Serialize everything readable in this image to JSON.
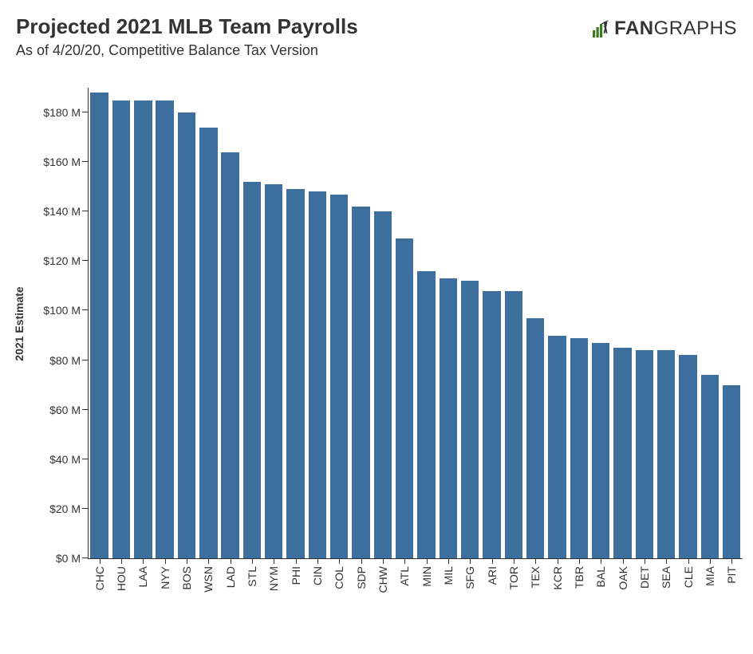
{
  "title": "Projected 2021 MLB Team Payrolls",
  "subtitle": "As of 4/20/20, Competitive Balance Tax Version",
  "logo": {
    "prefix": "FAN",
    "suffix": "GRAPHS",
    "icon_color": "#3c7a1f"
  },
  "chart": {
    "type": "bar",
    "ylabel": "2021 Estimate",
    "ymin": 0,
    "ymax": 190,
    "yticks": [
      0,
      20,
      40,
      60,
      80,
      100,
      120,
      140,
      160,
      180
    ],
    "ytick_labels": [
      "$0 M",
      "$20 M",
      "$40 M",
      "$60 M",
      "$80 M",
      "$100 M",
      "$120 M",
      "$140 M",
      "$160 M",
      "$180 M"
    ],
    "bar_color": "#3c6e9e",
    "axis_color": "#333333",
    "background": "#ffffff",
    "label_fontsize": 14,
    "title_fontsize": 26,
    "subtitle_fontsize": 18,
    "teams": [
      {
        "abbr": "CHC",
        "value": 188
      },
      {
        "abbr": "HOU",
        "value": 185
      },
      {
        "abbr": "LAA",
        "value": 185
      },
      {
        "abbr": "NYY",
        "value": 185
      },
      {
        "abbr": "BOS",
        "value": 180
      },
      {
        "abbr": "WSN",
        "value": 174
      },
      {
        "abbr": "LAD",
        "value": 164
      },
      {
        "abbr": "STL",
        "value": 152
      },
      {
        "abbr": "NYM",
        "value": 151
      },
      {
        "abbr": "PHI",
        "value": 149
      },
      {
        "abbr": "CIN",
        "value": 148
      },
      {
        "abbr": "COL",
        "value": 147
      },
      {
        "abbr": "SDP",
        "value": 142
      },
      {
        "abbr": "CHW",
        "value": 140
      },
      {
        "abbr": "ATL",
        "value": 129
      },
      {
        "abbr": "MIN",
        "value": 116
      },
      {
        "abbr": "MIL",
        "value": 113
      },
      {
        "abbr": "SFG",
        "value": 112
      },
      {
        "abbr": "ARI",
        "value": 108
      },
      {
        "abbr": "TOR",
        "value": 108
      },
      {
        "abbr": "TEX",
        "value": 97
      },
      {
        "abbr": "KCR",
        "value": 90
      },
      {
        "abbr": "TBR",
        "value": 89
      },
      {
        "abbr": "BAL",
        "value": 87
      },
      {
        "abbr": "OAK",
        "value": 85
      },
      {
        "abbr": "DET",
        "value": 84
      },
      {
        "abbr": "SEA",
        "value": 84
      },
      {
        "abbr": "CLE",
        "value": 82
      },
      {
        "abbr": "MIA",
        "value": 74
      },
      {
        "abbr": "PIT",
        "value": 70
      }
    ]
  }
}
